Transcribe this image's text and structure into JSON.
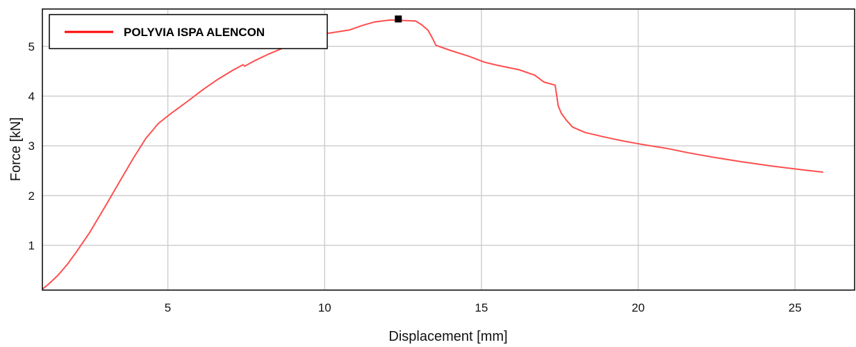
{
  "chart_data": {
    "type": "line",
    "title": "",
    "xlabel": "Displacement [mm]",
    "ylabel": "Force [kN]",
    "xlim": [
      1,
      26.9
    ],
    "ylim": [
      0.1,
      5.75
    ],
    "xticks": [
      5,
      10,
      15,
      20,
      25
    ],
    "yticks": [
      1,
      2,
      3,
      4,
      5
    ],
    "grid": true,
    "legend_position": "top-left",
    "series": [
      {
        "name": "POLYVIA ISPA ALENCON",
        "color": "#ff4d4d",
        "x": [
          1.0,
          1.2,
          1.5,
          1.8,
          2.1,
          2.5,
          3.0,
          3.5,
          3.9,
          4.3,
          4.7,
          5.1,
          5.6,
          6.1,
          6.6,
          7.1,
          7.4,
          7.45,
          7.8,
          8.2,
          8.8,
          9.3,
          10.0,
          10.5,
          10.8,
          11.2,
          11.6,
          12.1,
          12.5,
          12.9,
          13.1,
          13.3,
          13.45,
          13.55,
          14.0,
          14.6,
          15.1,
          15.5,
          16.2,
          16.7,
          17.0,
          17.35,
          17.45,
          17.55,
          17.7,
          17.9,
          18.3,
          18.9,
          19.5,
          20.2,
          20.9,
          21.6,
          22.4,
          23.3,
          24.3,
          25.2,
          25.9
        ],
        "y": [
          0.12,
          0.22,
          0.4,
          0.62,
          0.88,
          1.25,
          1.78,
          2.32,
          2.75,
          3.15,
          3.45,
          3.65,
          3.88,
          4.12,
          4.34,
          4.53,
          4.63,
          4.6,
          4.72,
          4.84,
          5.0,
          5.12,
          5.25,
          5.3,
          5.33,
          5.42,
          5.49,
          5.53,
          5.52,
          5.51,
          5.43,
          5.32,
          5.15,
          5.02,
          4.92,
          4.8,
          4.68,
          4.62,
          4.53,
          4.42,
          4.28,
          4.22,
          3.8,
          3.65,
          3.52,
          3.38,
          3.27,
          3.18,
          3.1,
          3.02,
          2.95,
          2.86,
          2.77,
          2.68,
          2.59,
          2.52,
          2.47
        ]
      }
    ],
    "annotations": [
      {
        "kind": "max-marker",
        "x": 12.35,
        "y": 5.55,
        "color": "#000000"
      }
    ]
  }
}
